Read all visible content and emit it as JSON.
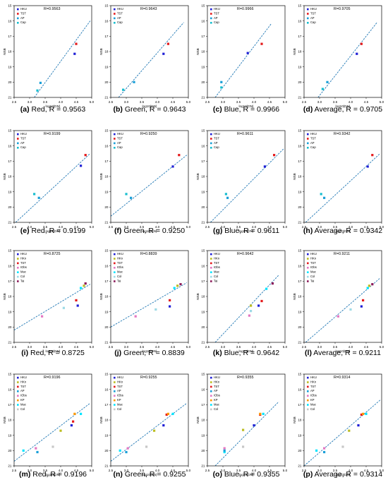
{
  "figure": {
    "axis": {
      "xlabel": "log10(DN)",
      "ylabel": "NSB",
      "xticks": [
        "2.5",
        "3.0",
        "3.5",
        "4.0",
        "4.5",
        "5.0"
      ],
      "yticks": [
        "15",
        "16",
        "17",
        "18",
        "19",
        "20",
        "21"
      ],
      "xlim": [
        2.5,
        5.0
      ],
      "ylim": [
        21,
        15
      ]
    },
    "legend_sets": {
      "A": [
        {
          "name": "HKU",
          "color": "#1f1fd6"
        },
        {
          "name": "TST",
          "color": "#e41a1c"
        },
        {
          "name": "AP",
          "color": "#1a9fd8"
        },
        {
          "name": "Cap",
          "color": "#17becf"
        }
      ],
      "C": [
        {
          "name": "HKU",
          "color": "#1f1fd6"
        },
        {
          "name": "HKn",
          "color": "#bcbd22"
        },
        {
          "name": "TST",
          "color": "#e41a1c"
        },
        {
          "name": "IObs",
          "color": "#e377c2"
        },
        {
          "name": "Mac",
          "color": "#00e5ff"
        },
        {
          "name": "Col",
          "color": "#9edae5"
        },
        {
          "name": "Tai",
          "color": "#8b1a5a"
        }
      ],
      "D": [
        {
          "name": "HKU",
          "color": "#1f1fd6"
        },
        {
          "name": "HKn",
          "color": "#bcbd22"
        },
        {
          "name": "TST",
          "color": "#e41a1c"
        },
        {
          "name": "AP",
          "color": "#1a9fd8"
        },
        {
          "name": "IObs",
          "color": "#e377c2"
        },
        {
          "name": "KP",
          "color": "#ff9900"
        },
        {
          "name": "Mac",
          "color": "#00e5ff"
        },
        {
          "name": "Col",
          "color": "#c7c7c7"
        }
      ]
    },
    "line_color": "#1f77b4"
  },
  "chart_data": [
    {
      "type": "scatter",
      "rtext": "R=0.9563",
      "caption": "(a) Red, R = 0.9563",
      "legend": "A",
      "fit": [
        [
          3.15,
          21.0
        ],
        [
          4.95,
          16.0
        ]
      ],
      "points": [
        [
          3.25,
          20.55,
          "#17becf"
        ],
        [
          3.35,
          20.05,
          "#1a9fd8"
        ],
        [
          4.5,
          17.5,
          "#e41a1c"
        ],
        [
          4.45,
          18.15,
          "#1f1fd6"
        ]
      ]
    },
    {
      "type": "scatter",
      "rtext": "R=0.9643",
      "caption": "(b) Green, R = 0.9643",
      "legend": "A",
      "fit": [
        [
          2.75,
          21.0
        ],
        [
          4.85,
          16.1
        ]
      ],
      "points": [
        [
          2.9,
          20.5,
          "#17becf"
        ],
        [
          3.25,
          20.0,
          "#1a9fd8"
        ],
        [
          4.35,
          17.5,
          "#e41a1c"
        ],
        [
          4.2,
          18.15,
          "#1f1fd6"
        ]
      ]
    },
    {
      "type": "scatter",
      "rtext": "R=0.9966",
      "caption": "(c) Blue, R = 0.9966",
      "legend": "A",
      "fit": [
        [
          2.75,
          21.0
        ],
        [
          4.55,
          16.2
        ]
      ],
      "points": [
        [
          2.95,
          20.35,
          "#17becf"
        ],
        [
          2.95,
          20.0,
          "#1a9fd8"
        ],
        [
          4.25,
          17.5,
          "#e41a1c"
        ],
        [
          3.8,
          18.1,
          "#1f1fd6"
        ]
      ]
    },
    {
      "type": "scatter",
      "rtext": "R=0.9705",
      "caption": "(d) Average, R = 0.9705",
      "legend": "A",
      "fit": [
        [
          2.95,
          21.0
        ],
        [
          4.85,
          16.1
        ]
      ],
      "points": [
        [
          3.1,
          20.45,
          "#17becf"
        ],
        [
          3.25,
          20.0,
          "#1a9fd8"
        ],
        [
          4.35,
          17.5,
          "#e41a1c"
        ],
        [
          4.2,
          18.15,
          "#1f1fd6"
        ]
      ]
    },
    {
      "type": "scatter",
      "rtext": "R=0.9199",
      "caption": "(e) Red, R = 0.9199",
      "legend": "A",
      "fit": [
        [
          2.55,
          21.0
        ],
        [
          4.95,
          16.5
        ]
      ],
      "points": [
        [
          3.15,
          19.15,
          "#17becf"
        ],
        [
          3.3,
          19.4,
          "#1a9fd8"
        ],
        [
          4.8,
          16.6,
          "#e41a1c"
        ],
        [
          4.65,
          17.3,
          "#1f1fd6"
        ]
      ]
    },
    {
      "type": "scatter",
      "rtext": "R=0.9250",
      "caption": "(f) Green, R = 0.9250",
      "legend": "A",
      "fit": [
        [
          2.5,
          20.6
        ],
        [
          4.95,
          16.6
        ]
      ],
      "points": [
        [
          3.0,
          19.15,
          "#17becf"
        ],
        [
          3.15,
          19.4,
          "#1a9fd8"
        ],
        [
          4.7,
          16.6,
          "#e41a1c"
        ],
        [
          4.5,
          17.35,
          "#1f1fd6"
        ]
      ]
    },
    {
      "type": "scatter",
      "rtext": "R=0.9611",
      "caption": "(g) Blue, R = 0.9611",
      "legend": "A",
      "fit": [
        [
          2.6,
          21.0
        ],
        [
          4.95,
          16.2
        ]
      ],
      "points": [
        [
          3.1,
          19.15,
          "#17becf"
        ],
        [
          3.15,
          19.4,
          "#1a9fd8"
        ],
        [
          4.65,
          16.6,
          "#e41a1c"
        ],
        [
          4.35,
          17.35,
          "#1f1fd6"
        ]
      ]
    },
    {
      "type": "scatter",
      "rtext": "R=0.9342",
      "caption": "(h) Average, R = 0.9342",
      "legend": "A",
      "fit": [
        [
          2.55,
          21.0
        ],
        [
          4.95,
          16.5
        ]
      ],
      "points": [
        [
          3.05,
          19.15,
          "#17becf"
        ],
        [
          3.15,
          19.4,
          "#1a9fd8"
        ],
        [
          4.7,
          16.6,
          "#e41a1c"
        ],
        [
          4.55,
          17.35,
          "#1f1fd6"
        ]
      ]
    },
    {
      "type": "scatter",
      "rtext": "R=0.8725",
      "caption": "(i) Red, R = 0.8725",
      "legend": "C",
      "fit": [
        [
          2.5,
          20.2
        ],
        [
          4.95,
          17.2
        ]
      ],
      "points": [
        [
          3.4,
          19.3,
          "#e377c2"
        ],
        [
          4.1,
          18.75,
          "#9edae5"
        ],
        [
          4.5,
          18.25,
          "#e41a1c"
        ],
        [
          4.55,
          18.6,
          "#1f1fd6"
        ],
        [
          4.65,
          17.45,
          "#00e5ff"
        ],
        [
          4.8,
          17.15,
          "#8b1a5a"
        ],
        [
          4.75,
          17.3,
          "#bcbd22"
        ]
      ]
    },
    {
      "type": "scatter",
      "rtext": "R=0.8839",
      "caption": "(j) Green, R = 0.8839",
      "legend": "C",
      "fit": [
        [
          2.5,
          20.0
        ],
        [
          4.95,
          17.1
        ]
      ],
      "points": [
        [
          3.3,
          19.3,
          "#e377c2"
        ],
        [
          3.95,
          18.85,
          "#9edae5"
        ],
        [
          4.4,
          18.25,
          "#e41a1c"
        ],
        [
          4.4,
          18.65,
          "#1f1fd6"
        ],
        [
          4.55,
          17.45,
          "#00e5ff"
        ],
        [
          4.75,
          17.2,
          "#8b1a5a"
        ],
        [
          4.65,
          17.3,
          "#bcbd22"
        ]
      ]
    },
    {
      "type": "scatter",
      "rtext": "R=0.9642",
      "caption": "(k) Blue, R = 0.9642",
      "legend": "C",
      "fit": [
        [
          2.75,
          21.0
        ],
        [
          4.8,
          16.6
        ]
      ],
      "points": [
        [
          3.85,
          19.25,
          "#e377c2"
        ],
        [
          3.9,
          18.95,
          "#9edae5"
        ],
        [
          4.25,
          18.3,
          "#e41a1c"
        ],
        [
          4.15,
          18.6,
          "#1f1fd6"
        ],
        [
          4.4,
          17.5,
          "#00e5ff"
        ],
        [
          4.6,
          17.15,
          "#8b1a5a"
        ],
        [
          3.9,
          18.6,
          "#bcbd22"
        ]
      ]
    },
    {
      "type": "scatter",
      "rtext": "R=0.9211",
      "caption": "(l) Average, R = 0.9211",
      "legend": "C",
      "fit": [
        [
          2.55,
          21.0
        ],
        [
          4.95,
          16.8
        ]
      ],
      "points": [
        [
          3.6,
          19.3,
          "#e377c2"
        ],
        [
          4.0,
          18.85,
          "#9edae5"
        ],
        [
          4.4,
          18.25,
          "#e41a1c"
        ],
        [
          4.35,
          18.65,
          "#1f1fd6"
        ],
        [
          4.55,
          17.45,
          "#00e5ff"
        ],
        [
          4.7,
          17.2,
          "#8b1a5a"
        ],
        [
          4.6,
          17.3,
          "#bcbd22"
        ]
      ]
    },
    {
      "type": "scatter",
      "rtext": "R=0.9196",
      "caption": "(m) Red, R = 0.9196",
      "legend": "D",
      "fit": [
        [
          2.5,
          20.7
        ],
        [
          4.95,
          16.9
        ]
      ],
      "points": [
        [
          2.8,
          20.0,
          "#00e5ff"
        ],
        [
          3.2,
          19.85,
          "#e377c2"
        ],
        [
          3.75,
          19.75,
          "#c7c7c7"
        ],
        [
          4.35,
          18.35,
          "#1f1fd6"
        ],
        [
          4.4,
          18.1,
          "#e41a1c"
        ],
        [
          4.45,
          17.6,
          "#ff9900"
        ],
        [
          4.65,
          17.6,
          "#00e5ff"
        ],
        [
          4.0,
          18.7,
          "#bcbd22"
        ],
        [
          3.25,
          20.1,
          "#1a9fd8"
        ]
      ]
    },
    {
      "type": "scatter",
      "rtext": "R=0.9255",
      "caption": "(n) Green, R = 0.9255",
      "legend": "D",
      "fit": [
        [
          2.5,
          20.7
        ],
        [
          4.95,
          16.9
        ]
      ],
      "points": [
        [
          2.8,
          20.0,
          "#00e5ff"
        ],
        [
          3.05,
          19.85,
          "#e377c2"
        ],
        [
          3.65,
          19.75,
          "#c7c7c7"
        ],
        [
          4.2,
          18.35,
          "#1f1fd6"
        ],
        [
          4.3,
          17.65,
          "#e41a1c"
        ],
        [
          4.35,
          17.6,
          "#ff9900"
        ],
        [
          4.5,
          17.6,
          "#00e5ff"
        ],
        [
          3.9,
          18.7,
          "#bcbd22"
        ],
        [
          3.0,
          20.1,
          "#1a9fd8"
        ]
      ]
    },
    {
      "type": "scatter",
      "rtext": "R=0.9355",
      "caption": "(o) Blue, R = 0.9355",
      "legend": "D",
      "fit": [
        [
          2.75,
          21.0
        ],
        [
          4.8,
          16.8
        ]
      ],
      "points": [
        [
          3.05,
          20.1,
          "#00e5ff"
        ],
        [
          3.05,
          19.85,
          "#e377c2"
        ],
        [
          3.65,
          19.75,
          "#c7c7c7"
        ],
        [
          4.0,
          18.35,
          "#1f1fd6"
        ],
        [
          4.2,
          17.65,
          "#e41a1c"
        ],
        [
          4.2,
          17.6,
          "#ff9900"
        ],
        [
          4.3,
          17.6,
          "#00e5ff"
        ],
        [
          3.65,
          18.65,
          "#bcbd22"
        ],
        [
          3.05,
          20.0,
          "#1a9fd8"
        ]
      ]
    },
    {
      "type": "scatter",
      "rtext": "R=0.9314",
      "caption": "(p) Average, R = 0.9314",
      "legend": "D",
      "fit": [
        [
          2.5,
          21.0
        ],
        [
          4.95,
          16.7
        ]
      ],
      "points": [
        [
          2.9,
          20.0,
          "#00e5ff"
        ],
        [
          3.15,
          19.85,
          "#e377c2"
        ],
        [
          3.75,
          19.75,
          "#c7c7c7"
        ],
        [
          4.25,
          18.35,
          "#1f1fd6"
        ],
        [
          4.35,
          17.65,
          "#e41a1c"
        ],
        [
          4.4,
          17.6,
          "#ff9900"
        ],
        [
          4.5,
          17.6,
          "#00e5ff"
        ],
        [
          3.95,
          18.7,
          "#bcbd22"
        ],
        [
          3.15,
          20.1,
          "#1a9fd8"
        ]
      ]
    }
  ]
}
